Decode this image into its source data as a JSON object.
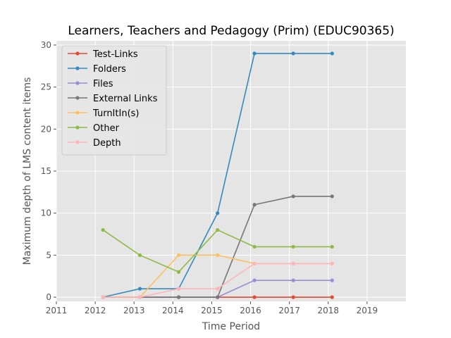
{
  "chart_data": {
    "type": "line",
    "title": "Learners, Teachers and Pedagogy (Prim) (EDUC90365)",
    "xlabel": "Time Period",
    "ylabel": "Maximum depth of LMS content items",
    "xlim": [
      2011,
      2020
    ],
    "ylim": [
      0,
      30
    ],
    "xticks": [
      2011,
      2012,
      2013,
      2014,
      2015,
      2016,
      2017,
      2018,
      2019
    ],
    "yticks": [
      0,
      5,
      10,
      15,
      20,
      25,
      30
    ],
    "grid": true,
    "legend_position": "top-left",
    "x": [
      2012.2,
      2013.15,
      2014.15,
      2015.15,
      2016.1,
      2017.1,
      2018.1
    ],
    "series": [
      {
        "name": "Test-Links",
        "color": "#E24A33",
        "values": [
          0,
          0,
          0,
          0,
          0,
          0,
          0
        ]
      },
      {
        "name": "Folders",
        "color": "#348ABD",
        "values": [
          0,
          1,
          1,
          10,
          29,
          29,
          29
        ]
      },
      {
        "name": "Files",
        "color": "#988ED5",
        "values": [
          0,
          0,
          0,
          0,
          2,
          2,
          2
        ]
      },
      {
        "name": "External Links",
        "color": "#777777",
        "values": [
          0,
          0,
          0,
          0,
          11,
          12,
          12
        ]
      },
      {
        "name": "TurnItIn(s)",
        "color": "#FBC15E",
        "values": [
          0,
          0,
          5,
          5,
          4,
          4,
          4
        ]
      },
      {
        "name": "Other",
        "color": "#8EBA42",
        "values": [
          8,
          5,
          3,
          8,
          6,
          6,
          6
        ]
      },
      {
        "name": "Depth",
        "color": "#FFB5B8",
        "values": [
          0,
          0,
          1,
          1,
          4,
          4,
          4
        ]
      }
    ]
  }
}
